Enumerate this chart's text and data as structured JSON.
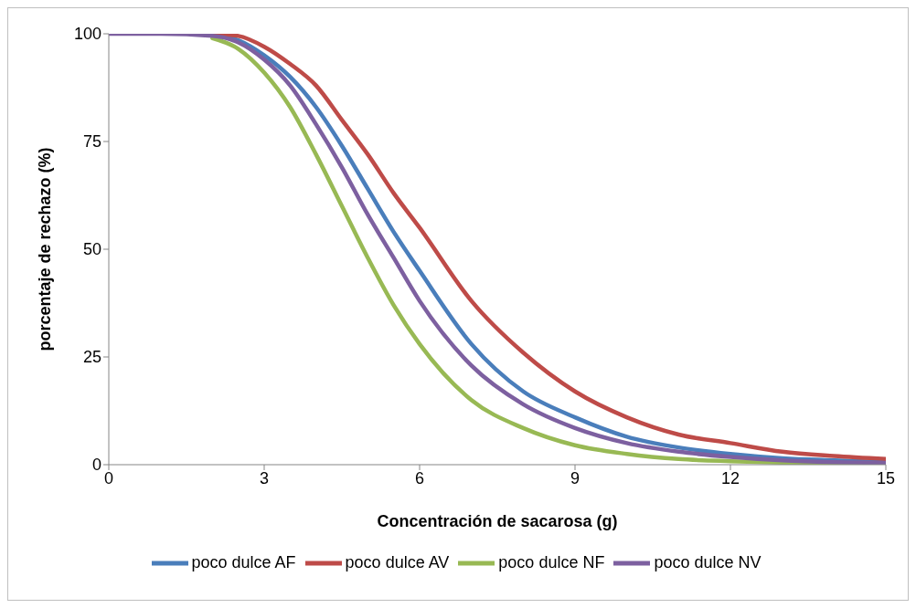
{
  "chart_data": {
    "type": "line",
    "xlabel": "Concentración de sacarosa (g)",
    "ylabel": "porcentaje de rechazo (%)",
    "x": [
      0,
      1,
      2,
      2.5,
      3,
      3.5,
      4,
      4.5,
      5,
      5.5,
      6,
      7,
      8,
      9,
      10,
      11,
      12,
      13,
      14,
      15
    ],
    "series": [
      {
        "name": "poco dulce AF",
        "color": "#4a7ebb",
        "values": [
          null,
          null,
          100,
          98.5,
          95,
          90,
          83,
          74,
          64,
          54,
          45,
          28,
          17,
          11,
          6.5,
          4,
          2.5,
          1.5,
          1,
          0.6
        ]
      },
      {
        "name": "poco dulce AV",
        "color": "#be4b48",
        "values": [
          null,
          null,
          100,
          99.5,
          97,
          93,
          88,
          80,
          72,
          63,
          55,
          38,
          26,
          17,
          11,
          7,
          5,
          3,
          2,
          1.3
        ]
      },
      {
        "name": "poco dulce NF",
        "color": "#98b954",
        "values": [
          null,
          null,
          99,
          96.5,
          91,
          83,
          72,
          60,
          48,
          37,
          28,
          15,
          8.5,
          4.5,
          2.5,
          1.3,
          0.8,
          0.5,
          0.3,
          0.2
        ]
      },
      {
        "name": "poco dulce NV",
        "color": "#7d60a0",
        "values": [
          100,
          100,
          99.5,
          98,
          94,
          88,
          79,
          69,
          58,
          48,
          38,
          23,
          14,
          8.5,
          5,
          3,
          1.8,
          1,
          0.6,
          0.4
        ]
      }
    ],
    "xlim": [
      0,
      15
    ],
    "xticks": [
      0,
      3,
      6,
      9,
      12,
      15
    ],
    "ylim": [
      0,
      100
    ],
    "yticks": [
      0,
      25,
      50,
      75,
      100
    ],
    "grid": false,
    "legend": "bottom",
    "marker": "none",
    "line_style": "solid"
  }
}
